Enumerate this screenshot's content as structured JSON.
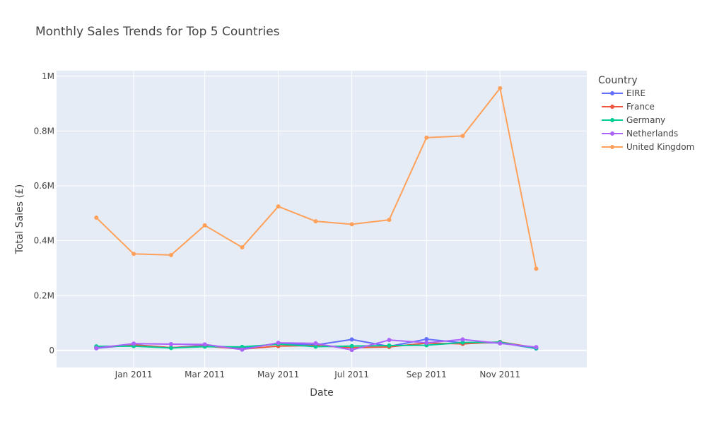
{
  "chart_data": {
    "type": "line",
    "title": "Monthly Sales Trends for Top 5 Countries",
    "xlabel": "Date",
    "ylabel": "Total Sales (£)",
    "x": [
      "2010-12-01",
      "2011-01-01",
      "2011-02-01",
      "2011-03-01",
      "2011-04-01",
      "2011-05-01",
      "2011-06-01",
      "2011-07-01",
      "2011-08-01",
      "2011-09-01",
      "2011-10-01",
      "2011-11-01",
      "2011-12-01"
    ],
    "x_ticks": [
      {
        "date": "2011-01-01",
        "label": "Jan 2011"
      },
      {
        "date": "2011-03-01",
        "label": "Mar 2011"
      },
      {
        "date": "2011-05-01",
        "label": "May 2011"
      },
      {
        "date": "2011-07-01",
        "label": "Jul 2011"
      },
      {
        "date": "2011-09-01",
        "label": "Sep 2011"
      },
      {
        "date": "2011-11-01",
        "label": "Nov 2011"
      }
    ],
    "xlim": [
      "2010-10-29",
      "2012-01-12"
    ],
    "ylim": [
      -62000,
      1020000
    ],
    "y_ticks": [
      {
        "value": 0,
        "label": "0"
      },
      {
        "value": 200000,
        "label": "0.2M"
      },
      {
        "value": 400000,
        "label": "0.4M"
      },
      {
        "value": 600000,
        "label": "0.6M"
      },
      {
        "value": 800000,
        "label": "0.8M"
      },
      {
        "value": 1000000,
        "label": "1M"
      }
    ],
    "grid": true,
    "legend_title": "Country",
    "legend_position": "right",
    "series": [
      {
        "name": "EIRE",
        "color": "#636efa",
        "values": [
          8000,
          21000,
          10000,
          19000,
          8000,
          25000,
          20000,
          40000,
          15000,
          41000,
          28000,
          28000,
          7000
        ]
      },
      {
        "name": "France",
        "color": "#ef553b",
        "values": [
          11000,
          20000,
          10000,
          16000,
          5000,
          16000,
          18000,
          10000,
          13000,
          27000,
          24000,
          31000,
          10000
        ]
      },
      {
        "name": "Germany",
        "color": "#00cc96",
        "values": [
          15000,
          16000,
          9000,
          14000,
          13000,
          23000,
          14000,
          16000,
          18000,
          19000,
          29000,
          30000,
          8000
        ]
      },
      {
        "name": "Netherlands",
        "color": "#ab63fa",
        "values": [
          9000,
          25000,
          23000,
          22000,
          3000,
          28000,
          26000,
          2000,
          38000,
          28000,
          40000,
          26000,
          12000
        ]
      },
      {
        "name": "United Kingdom",
        "color": "#ffa15a",
        "values": [
          484000,
          352000,
          348000,
          456000,
          376000,
          525000,
          471000,
          460000,
          476000,
          776000,
          782000,
          956000,
          298000
        ]
      }
    ]
  }
}
